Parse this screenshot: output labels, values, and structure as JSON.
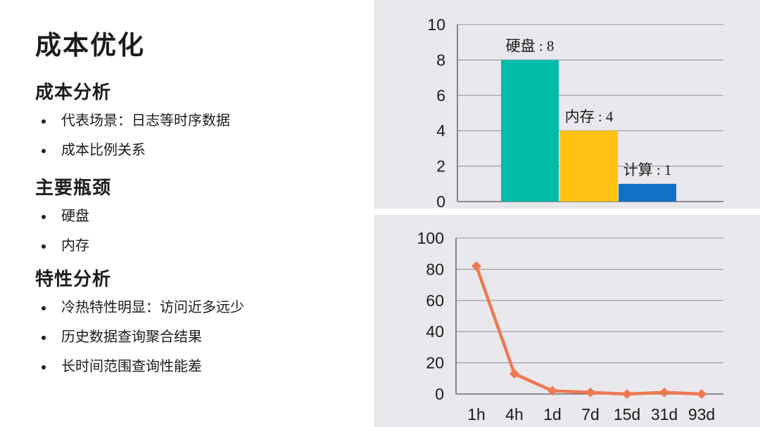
{
  "slide": {
    "title": "成本优化",
    "sections": [
      {
        "heading": "成本分析",
        "bullets": [
          "代表场景：日志等时序数据",
          "成本比例关系"
        ]
      },
      {
        "heading": "主要瓶颈",
        "bullets": [
          "硬盘",
          "内存"
        ]
      },
      {
        "heading": "特性分析",
        "bullets": [
          "冷热特性明显：访问近多远少",
          "历史数据查询聚合结果",
          "长时间范围查询性能差"
        ]
      }
    ]
  },
  "colors": {
    "panel_bg": "#E9E8EC",
    "grid": "#97969B",
    "axis": "#6E6D73",
    "tick_text": "#1c1c1c",
    "bar_teal": "#00BCA9",
    "bar_yellow": "#FFC213",
    "bar_blue": "#1171C4",
    "line_orange": "#EE7852"
  },
  "chart_data": [
    {
      "type": "bar",
      "categories": [
        "硬盘",
        "内存",
        "计算"
      ],
      "values": [
        8,
        4,
        1
      ],
      "data_labels": [
        "硬盘 : 8",
        "内存 : 4",
        "计算 : 1"
      ],
      "bar_colors": [
        "#00BCA9",
        "#FFC213",
        "#1171C4"
      ],
      "title": "",
      "xlabel": "",
      "ylabel": "",
      "ylim": [
        0,
        10
      ],
      "yticks": [
        0,
        2,
        4,
        6,
        8,
        10
      ],
      "grid": true,
      "legend": false
    },
    {
      "type": "line",
      "x": [
        "1h",
        "4h",
        "1d",
        "7d",
        "15d",
        "31d",
        "93d"
      ],
      "values": [
        82,
        13,
        2,
        1,
        0,
        1,
        0
      ],
      "marker": "diamond",
      "color": "#EE7852",
      "title": "",
      "xlabel": "",
      "ylabel": "",
      "ylim": [
        0,
        100
      ],
      "yticks": [
        0,
        20,
        40,
        60,
        80,
        100
      ],
      "grid": true,
      "legend": false
    }
  ]
}
